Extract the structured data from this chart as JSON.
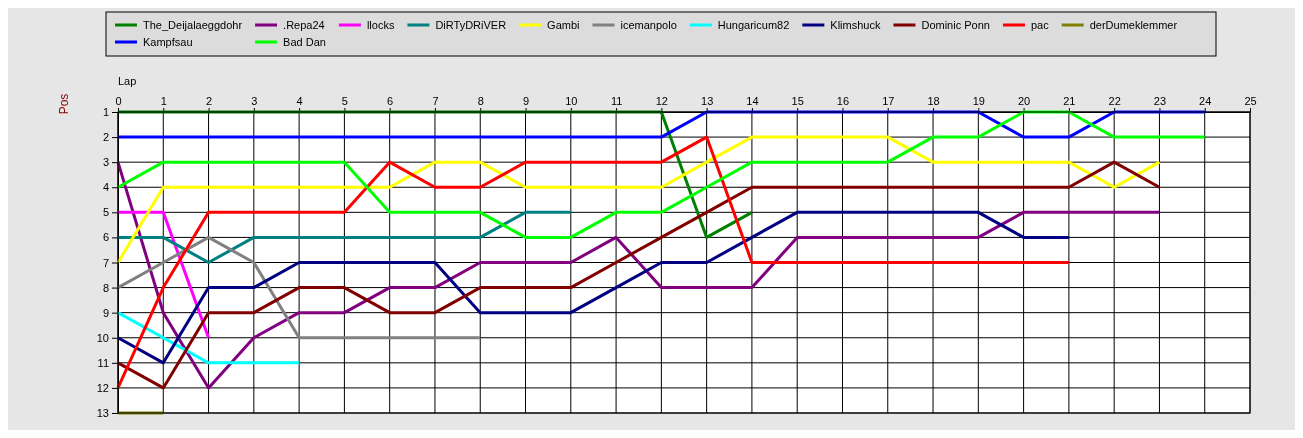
{
  "chart_data": {
    "type": "line",
    "xlabel": "Lap",
    "ylabel": "Pos",
    "x": [
      0,
      1,
      2,
      3,
      4,
      5,
      6,
      7,
      8,
      9,
      10,
      11,
      12,
      13,
      14,
      15,
      16,
      17,
      18,
      19,
      20,
      21,
      22,
      23,
      24
    ],
    "xlim": [
      0,
      25
    ],
    "xticks": [
      0,
      1,
      2,
      3,
      4,
      5,
      6,
      7,
      8,
      9,
      10,
      11,
      12,
      13,
      14,
      15,
      16,
      17,
      18,
      19,
      20,
      21,
      22,
      23,
      24,
      25
    ],
    "ylim": [
      13,
      1
    ],
    "yticks": [
      1,
      2,
      3,
      4,
      5,
      6,
      7,
      8,
      9,
      10,
      11,
      12,
      13
    ],
    "grid": true,
    "legend": "top",
    "series": [
      {
        "name": "The_Deijalaeggdohr",
        "color": "#008000",
        "values": [
          1,
          1,
          1,
          1,
          1,
          1,
          1,
          1,
          1,
          1,
          1,
          1,
          1,
          6,
          5,
          null,
          null,
          null,
          null,
          null,
          null,
          null,
          null,
          null,
          null
        ]
      },
      {
        "name": ".Repa24",
        "color": "#800080",
        "values": [
          3,
          9,
          12,
          10,
          9,
          9,
          8,
          8,
          7,
          7,
          7,
          6,
          8,
          8,
          8,
          6,
          6,
          6,
          6,
          6,
          5,
          5,
          5,
          5,
          null
        ]
      },
      {
        "name": "llocks",
        "color": "#ff00ff",
        "values": [
          5,
          5,
          10,
          null,
          null,
          null,
          null,
          null,
          null,
          null,
          null,
          null,
          null,
          null,
          null,
          null,
          null,
          null,
          null,
          null,
          null,
          null,
          null,
          null,
          null
        ]
      },
      {
        "name": "DiRTyDRiVER",
        "color": "#008080",
        "values": [
          6,
          6,
          7,
          6,
          6,
          6,
          6,
          6,
          6,
          5,
          5,
          null,
          null,
          null,
          null,
          null,
          null,
          null,
          null,
          null,
          null,
          null,
          null,
          null,
          null
        ]
      },
      {
        "name": "Gambi",
        "color": "#ffff00",
        "values": [
          7,
          4,
          4,
          4,
          4,
          4,
          4,
          3,
          3,
          4,
          4,
          4,
          4,
          3,
          2,
          2,
          2,
          2,
          3,
          3,
          3,
          3,
          4,
          3,
          null
        ]
      },
      {
        "name": "icemanpolo",
        "color": "#808080",
        "values": [
          8,
          7,
          6,
          7,
          10,
          10,
          10,
          10,
          10,
          null,
          null,
          null,
          null,
          null,
          null,
          null,
          null,
          null,
          null,
          null,
          null,
          null,
          null,
          null,
          null
        ]
      },
      {
        "name": "Hungaricum82",
        "color": "#00ffff",
        "values": [
          9,
          10,
          11,
          11,
          11,
          null,
          null,
          null,
          null,
          null,
          null,
          null,
          null,
          null,
          null,
          null,
          null,
          null,
          null,
          null,
          null,
          null,
          null,
          null,
          null
        ]
      },
      {
        "name": "Klimshuck",
        "color": "#000080",
        "values": [
          10,
          11,
          8,
          8,
          7,
          7,
          7,
          7,
          9,
          9,
          9,
          8,
          7,
          7,
          6,
          5,
          5,
          5,
          5,
          5,
          6,
          6,
          null,
          null,
          null
        ]
      },
      {
        "name": "Dominic Ponn",
        "color": "#800000",
        "values": [
          11,
          12,
          9,
          9,
          8,
          8,
          9,
          9,
          8,
          8,
          8,
          7,
          6,
          5,
          4,
          4,
          4,
          4,
          4,
          4,
          4,
          4,
          3,
          4,
          null
        ]
      },
      {
        "name": "pac",
        "color": "#ff0000",
        "values": [
          12,
          8,
          5,
          5,
          5,
          5,
          3,
          4,
          4,
          3,
          3,
          3,
          3,
          2,
          7,
          7,
          7,
          7,
          7,
          7,
          7,
          7,
          null,
          null,
          null
        ]
      },
      {
        "name": "derDumeklemmer",
        "color": "#808000",
        "values": [
          13,
          13,
          null,
          null,
          null,
          null,
          null,
          null,
          null,
          null,
          null,
          null,
          null,
          null,
          null,
          null,
          null,
          null,
          null,
          null,
          null,
          null,
          null,
          null,
          null
        ]
      },
      {
        "name": "Kampfsau",
        "color": "#0000ff",
        "values": [
          2,
          2,
          2,
          2,
          2,
          2,
          2,
          2,
          2,
          2,
          2,
          2,
          2,
          1,
          1,
          1,
          1,
          1,
          1,
          1,
          2,
          2,
          1,
          1,
          1
        ]
      },
      {
        "name": "Bad Dan",
        "color": "#00ff00",
        "values": [
          4,
          3,
          3,
          3,
          3,
          3,
          5,
          5,
          5,
          6,
          6,
          5,
          5,
          4,
          3,
          3,
          3,
          3,
          2,
          2,
          1,
          1,
          2,
          2,
          2
        ]
      }
    ]
  }
}
